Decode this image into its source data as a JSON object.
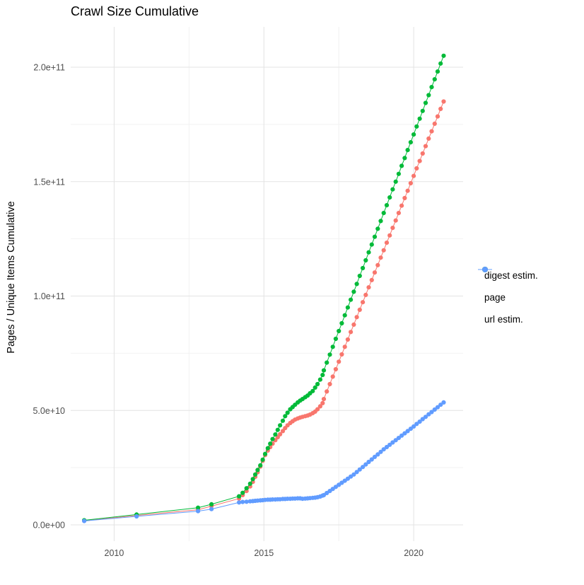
{
  "page": {
    "title": "Crawl Size Cumulative"
  },
  "chart_data": {
    "type": "scatter",
    "title": "Crawl Size Cumulative",
    "xlabel": "",
    "ylabel": "Pages / Unique Items Cumulative",
    "grid": true,
    "legend_position": "right",
    "xlim": [
      2008.55,
      2021.65
    ],
    "ylim": [
      0,
      217000000000.0
    ],
    "y_value_scale": 1000000000,
    "x_ticks": [
      {
        "value": 2010,
        "label": "2010"
      },
      {
        "value": 2015,
        "label": "2015"
      },
      {
        "value": 2020,
        "label": "2020"
      }
    ],
    "x_minor": [
      2012.5,
      2017.5
    ],
    "y_ticks": [
      {
        "value": 0,
        "label": "0.0e+00"
      },
      {
        "value": 50,
        "label": "5.0e+10"
      },
      {
        "value": 100,
        "label": "1.0e+11"
      },
      {
        "value": 150,
        "label": "1.5e+11"
      },
      {
        "value": 200,
        "label": "2.0e+11"
      }
    ],
    "y_minor": [
      25,
      75,
      125,
      175
    ],
    "series": [
      {
        "name": "digest estim.",
        "color": "#F8766D",
        "points": [
          [
            2009.0,
            1.8
          ],
          [
            2010.75,
            4.1
          ],
          [
            2012.8,
            6.6
          ],
          [
            2013.25,
            8.2
          ],
          [
            2014.17,
            11.5
          ],
          [
            2014.29,
            13.0
          ],
          [
            2014.42,
            14.8
          ],
          [
            2014.54,
            16.8
          ],
          [
            2014.63,
            18.8
          ],
          [
            2014.71,
            21.0
          ],
          [
            2014.79,
            23.0
          ],
          [
            2014.88,
            25.5
          ],
          [
            2014.96,
            28.0
          ],
          [
            2015.04,
            30.5
          ],
          [
            2015.13,
            32.5
          ],
          [
            2015.21,
            34.0
          ],
          [
            2015.29,
            35.5
          ],
          [
            2015.38,
            37.0
          ],
          [
            2015.46,
            38.3
          ],
          [
            2015.54,
            39.6
          ],
          [
            2015.63,
            41.0
          ],
          [
            2015.71,
            42.3
          ],
          [
            2015.79,
            43.5
          ],
          [
            2015.88,
            44.5
          ],
          [
            2015.96,
            45.3
          ],
          [
            2016.04,
            46.0
          ],
          [
            2016.13,
            46.5
          ],
          [
            2016.21,
            46.9
          ],
          [
            2016.29,
            47.2
          ],
          [
            2016.38,
            47.5
          ],
          [
            2016.46,
            47.8
          ],
          [
            2016.54,
            48.2
          ],
          [
            2016.63,
            48.8
          ],
          [
            2016.71,
            49.5
          ],
          [
            2016.79,
            50.5
          ],
          [
            2016.88,
            51.8
          ],
          [
            2016.96,
            53.2
          ],
          [
            2017.0,
            55.0
          ],
          [
            2017.1,
            58.3
          ],
          [
            2017.2,
            61.5
          ],
          [
            2017.3,
            64.8
          ],
          [
            2017.4,
            68.0
          ],
          [
            2017.5,
            71.3
          ],
          [
            2017.6,
            74.5
          ],
          [
            2017.7,
            77.8
          ],
          [
            2017.8,
            81.0
          ],
          [
            2017.9,
            84.3
          ],
          [
            2018.0,
            87.5
          ],
          [
            2018.1,
            90.8
          ],
          [
            2018.2,
            94.0
          ],
          [
            2018.3,
            97.3
          ],
          [
            2018.4,
            100.5
          ],
          [
            2018.5,
            103.8
          ],
          [
            2018.6,
            107.0
          ],
          [
            2018.7,
            110.3
          ],
          [
            2018.8,
            113.5
          ],
          [
            2018.9,
            116.8
          ],
          [
            2019.0,
            120.0
          ],
          [
            2019.1,
            123.3
          ],
          [
            2019.2,
            126.5
          ],
          [
            2019.3,
            129.8
          ],
          [
            2019.4,
            133.0
          ],
          [
            2019.5,
            136.3
          ],
          [
            2019.6,
            139.5
          ],
          [
            2019.7,
            142.8
          ],
          [
            2019.8,
            146.0
          ],
          [
            2019.9,
            149.3
          ],
          [
            2020.0,
            152.5
          ],
          [
            2020.1,
            155.8
          ],
          [
            2020.2,
            159.0
          ],
          [
            2020.3,
            162.3
          ],
          [
            2020.4,
            165.5
          ],
          [
            2020.5,
            168.8
          ],
          [
            2020.6,
            172.0
          ],
          [
            2020.7,
            175.3
          ],
          [
            2020.8,
            178.5
          ],
          [
            2020.9,
            181.8
          ],
          [
            2021.0,
            185.0
          ]
        ]
      },
      {
        "name": "page",
        "color": "#00BA38",
        "points": [
          [
            2009.0,
            2.0
          ],
          [
            2010.75,
            4.5
          ],
          [
            2012.8,
            7.5
          ],
          [
            2013.25,
            9.0
          ],
          [
            2014.17,
            12.5
          ],
          [
            2014.29,
            14.0
          ],
          [
            2014.42,
            16.0
          ],
          [
            2014.54,
            18.0
          ],
          [
            2014.63,
            20.0
          ],
          [
            2014.71,
            22.0
          ],
          [
            2014.79,
            24.0
          ],
          [
            2014.88,
            26.0
          ],
          [
            2014.96,
            28.5
          ],
          [
            2015.04,
            31.0
          ],
          [
            2015.13,
            33.5
          ],
          [
            2015.21,
            35.5
          ],
          [
            2015.29,
            37.5
          ],
          [
            2015.38,
            39.5
          ],
          [
            2015.46,
            41.5
          ],
          [
            2015.54,
            43.5
          ],
          [
            2015.63,
            45.5
          ],
          [
            2015.71,
            47.5
          ],
          [
            2015.79,
            49.0
          ],
          [
            2015.88,
            50.5
          ],
          [
            2015.96,
            51.5
          ],
          [
            2016.04,
            52.5
          ],
          [
            2016.13,
            53.5
          ],
          [
            2016.21,
            54.3
          ],
          [
            2016.29,
            55.0
          ],
          [
            2016.38,
            55.8
          ],
          [
            2016.46,
            56.5
          ],
          [
            2016.54,
            57.5
          ],
          [
            2016.63,
            58.5
          ],
          [
            2016.71,
            60.0
          ],
          [
            2016.79,
            61.5
          ],
          [
            2016.88,
            63.5
          ],
          [
            2016.96,
            65.5
          ],
          [
            2017.0,
            67.5
          ],
          [
            2017.1,
            70.9
          ],
          [
            2017.2,
            74.4
          ],
          [
            2017.3,
            77.8
          ],
          [
            2017.4,
            81.3
          ],
          [
            2017.5,
            84.7
          ],
          [
            2017.6,
            88.1
          ],
          [
            2017.7,
            91.6
          ],
          [
            2017.8,
            95.0
          ],
          [
            2017.9,
            98.4
          ],
          [
            2018.0,
            101.9
          ],
          [
            2018.1,
            105.3
          ],
          [
            2018.2,
            108.8
          ],
          [
            2018.3,
            112.2
          ],
          [
            2018.4,
            115.6
          ],
          [
            2018.5,
            119.1
          ],
          [
            2018.6,
            122.5
          ],
          [
            2018.7,
            125.9
          ],
          [
            2018.8,
            129.4
          ],
          [
            2018.9,
            132.8
          ],
          [
            2019.0,
            136.3
          ],
          [
            2019.1,
            139.7
          ],
          [
            2019.2,
            143.1
          ],
          [
            2019.3,
            146.6
          ],
          [
            2019.4,
            150.0
          ],
          [
            2019.5,
            153.4
          ],
          [
            2019.6,
            156.9
          ],
          [
            2019.7,
            160.3
          ],
          [
            2019.8,
            163.8
          ],
          [
            2019.9,
            167.2
          ],
          [
            2020.0,
            170.6
          ],
          [
            2020.1,
            174.1
          ],
          [
            2020.2,
            177.5
          ],
          [
            2020.3,
            180.9
          ],
          [
            2020.4,
            184.4
          ],
          [
            2020.5,
            187.8
          ],
          [
            2020.6,
            191.3
          ],
          [
            2020.7,
            194.7
          ],
          [
            2020.8,
            198.1
          ],
          [
            2020.9,
            201.6
          ],
          [
            2021.0,
            205.0
          ]
        ]
      },
      {
        "name": "url estim.",
        "color": "#619CFF",
        "points": [
          [
            2009.0,
            1.7
          ],
          [
            2010.75,
            3.7
          ],
          [
            2012.8,
            6.0
          ],
          [
            2013.25,
            6.9
          ],
          [
            2014.17,
            9.8
          ],
          [
            2014.29,
            10.0
          ],
          [
            2014.42,
            10.1
          ],
          [
            2014.54,
            10.3
          ],
          [
            2014.63,
            10.4
          ],
          [
            2014.71,
            10.5
          ],
          [
            2014.79,
            10.6
          ],
          [
            2014.88,
            10.7
          ],
          [
            2014.96,
            10.8
          ],
          [
            2015.04,
            10.9
          ],
          [
            2015.13,
            11.0
          ],
          [
            2015.21,
            11.0
          ],
          [
            2015.29,
            11.1
          ],
          [
            2015.38,
            11.1
          ],
          [
            2015.46,
            11.2
          ],
          [
            2015.54,
            11.2
          ],
          [
            2015.63,
            11.3
          ],
          [
            2015.71,
            11.3
          ],
          [
            2015.79,
            11.4
          ],
          [
            2015.88,
            11.4
          ],
          [
            2015.96,
            11.5
          ],
          [
            2016.04,
            11.5
          ],
          [
            2016.13,
            11.6
          ],
          [
            2016.21,
            11.6
          ],
          [
            2016.29,
            11.4
          ],
          [
            2016.38,
            11.5
          ],
          [
            2016.46,
            11.6
          ],
          [
            2016.54,
            11.7
          ],
          [
            2016.63,
            11.8
          ],
          [
            2016.71,
            11.9
          ],
          [
            2016.79,
            12.1
          ],
          [
            2016.88,
            12.4
          ],
          [
            2016.96,
            12.8
          ],
          [
            2017.0,
            13.0
          ],
          [
            2017.1,
            13.9
          ],
          [
            2017.2,
            14.8
          ],
          [
            2017.3,
            15.7
          ],
          [
            2017.4,
            16.6
          ],
          [
            2017.5,
            17.5
          ],
          [
            2017.6,
            18.4
          ],
          [
            2017.7,
            19.3
          ],
          [
            2017.8,
            20.2
          ],
          [
            2017.9,
            21.1
          ],
          [
            2018.0,
            22.0
          ],
          [
            2018.1,
            23.1
          ],
          [
            2018.2,
            24.2
          ],
          [
            2018.3,
            25.3
          ],
          [
            2018.4,
            26.4
          ],
          [
            2018.5,
            27.5
          ],
          [
            2018.6,
            28.6
          ],
          [
            2018.7,
            29.7
          ],
          [
            2018.8,
            30.8
          ],
          [
            2018.9,
            31.9
          ],
          [
            2019.0,
            33.0
          ],
          [
            2019.1,
            34.0
          ],
          [
            2019.2,
            35.0
          ],
          [
            2019.3,
            36.0
          ],
          [
            2019.4,
            37.0
          ],
          [
            2019.5,
            38.0
          ],
          [
            2019.6,
            39.0
          ],
          [
            2019.7,
            40.0
          ],
          [
            2019.8,
            41.0
          ],
          [
            2019.9,
            42.0
          ],
          [
            2020.0,
            43.0
          ],
          [
            2020.1,
            44.1
          ],
          [
            2020.2,
            45.1
          ],
          [
            2020.3,
            46.2
          ],
          [
            2020.4,
            47.2
          ],
          [
            2020.5,
            48.3
          ],
          [
            2020.6,
            49.3
          ],
          [
            2020.7,
            50.4
          ],
          [
            2020.8,
            51.4
          ],
          [
            2020.9,
            52.5
          ],
          [
            2021.0,
            53.5
          ]
        ]
      }
    ]
  }
}
